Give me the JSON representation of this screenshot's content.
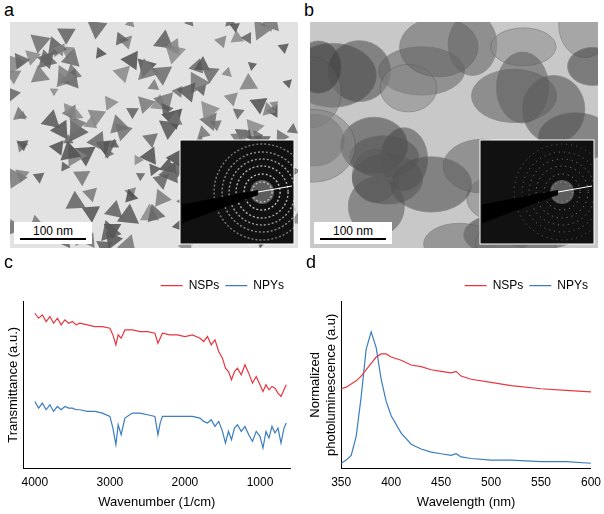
{
  "images": [
    {
      "label": "a",
      "scale_bar": "100 nm"
    },
    {
      "label": "b",
      "scale_bar": "100 nm"
    }
  ],
  "chart_data": [
    {
      "type": "line",
      "title": "c",
      "x_label": "Wavenumber (1/cm)",
      "y_label": "Transmittance (a.u.)",
      "x": [
        4000,
        3950,
        3900,
        3850,
        3800,
        3750,
        3700,
        3650,
        3600,
        3550,
        3500,
        3450,
        3400,
        3300,
        3200,
        3100,
        3000,
        2960,
        2920,
        2890,
        2850,
        2800,
        2700,
        2600,
        2500,
        2400,
        2360,
        2330,
        2300,
        2200,
        2100,
        2000,
        1900,
        1800,
        1750,
        1700,
        1650,
        1600,
        1550,
        1500,
        1460,
        1420,
        1380,
        1340,
        1300,
        1250,
        1200,
        1150,
        1100,
        1050,
        1000,
        960,
        920,
        880,
        840,
        800,
        760,
        720,
        680,
        650
      ],
      "series": [
        {
          "name": "NSPs",
          "color": "#e8373f",
          "values": [
            0.93,
            0.9,
            0.92,
            0.88,
            0.91,
            0.87,
            0.9,
            0.86,
            0.89,
            0.87,
            0.88,
            0.86,
            0.87,
            0.86,
            0.85,
            0.85,
            0.84,
            0.8,
            0.74,
            0.8,
            0.78,
            0.83,
            0.83,
            0.82,
            0.82,
            0.81,
            0.75,
            0.78,
            0.81,
            0.8,
            0.8,
            0.79,
            0.8,
            0.78,
            0.76,
            0.79,
            0.74,
            0.77,
            0.7,
            0.66,
            0.6,
            0.58,
            0.53,
            0.58,
            0.6,
            0.56,
            0.62,
            0.57,
            0.51,
            0.55,
            0.5,
            0.46,
            0.5,
            0.47,
            0.49,
            0.48,
            0.45,
            0.43,
            0.47,
            0.5
          ]
        },
        {
          "name": "NPYs",
          "color": "#3a7dc0",
          "values": [
            0.4,
            0.36,
            0.39,
            0.35,
            0.38,
            0.34,
            0.37,
            0.35,
            0.37,
            0.36,
            0.36,
            0.35,
            0.35,
            0.34,
            0.34,
            0.33,
            0.31,
            0.24,
            0.14,
            0.26,
            0.2,
            0.3,
            0.33,
            0.33,
            0.32,
            0.31,
            0.2,
            0.27,
            0.31,
            0.31,
            0.31,
            0.31,
            0.31,
            0.3,
            0.28,
            0.27,
            0.29,
            0.25,
            0.28,
            0.22,
            0.15,
            0.22,
            0.17,
            0.24,
            0.26,
            0.22,
            0.25,
            0.2,
            0.16,
            0.22,
            0.19,
            0.12,
            0.22,
            0.18,
            0.25,
            0.21,
            0.24,
            0.15,
            0.24,
            0.27
          ]
        }
      ],
      "xlim": [
        4150,
        600
      ],
      "xticks": [
        4000,
        3000,
        2000,
        1000
      ],
      "ylim": [
        0,
        1
      ],
      "tick_labels": "x",
      "grid": false,
      "legend": "upper right"
    },
    {
      "type": "line",
      "title": "d",
      "x_label": "Wavelength (nm)",
      "y_label": [
        "Normalized",
        "photoluminescence (a.u)"
      ],
      "x": [
        350,
        355,
        360,
        365,
        370,
        375,
        380,
        385,
        390,
        395,
        400,
        410,
        420,
        430,
        440,
        450,
        460,
        465,
        470,
        480,
        500,
        520,
        550,
        575,
        600
      ],
      "series": [
        {
          "name": "NSPs",
          "color": "#e8373f",
          "values": [
            0.5,
            0.51,
            0.53,
            0.55,
            0.58,
            0.62,
            0.66,
            0.7,
            0.72,
            0.72,
            0.7,
            0.68,
            0.65,
            0.64,
            0.62,
            0.61,
            0.6,
            0.61,
            0.58,
            0.56,
            0.54,
            0.52,
            0.5,
            0.49,
            0.48
          ]
        },
        {
          "name": "NPYs",
          "color": "#3a7dc0",
          "values": [
            0.03,
            0.05,
            0.08,
            0.2,
            0.45,
            0.75,
            0.86,
            0.76,
            0.56,
            0.42,
            0.33,
            0.22,
            0.15,
            0.12,
            0.1,
            0.09,
            0.08,
            0.09,
            0.07,
            0.06,
            0.05,
            0.05,
            0.04,
            0.04,
            0.03
          ]
        }
      ],
      "xlim": [
        350,
        600
      ],
      "xticks": [
        350,
        400,
        450,
        500,
        550,
        600
      ],
      "ylim": [
        0,
        1.05
      ],
      "tick_labels": "x",
      "grid": false,
      "legend": "upper right"
    }
  ]
}
